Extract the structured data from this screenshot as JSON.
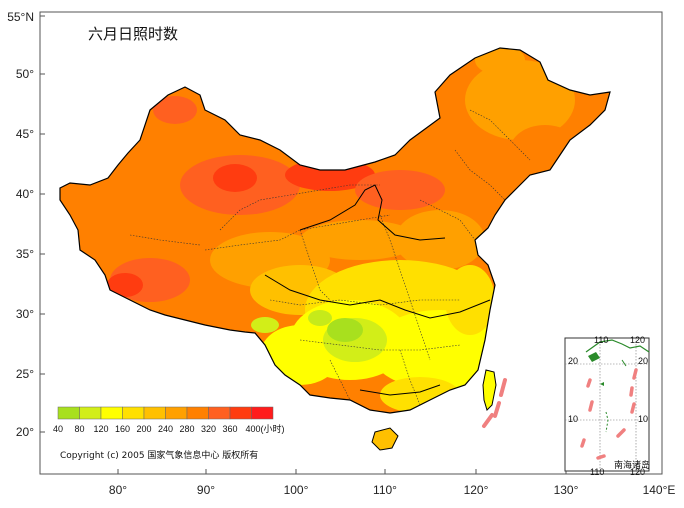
{
  "title": "六月日照时数",
  "lat_ticks": [
    "55°N",
    "50°",
    "45°",
    "40°",
    "35°",
    "30°",
    "25°",
    "20°"
  ],
  "lon_ticks": [
    "80°",
    "90°",
    "100°",
    "110°",
    "120°",
    "130°",
    "140°E"
  ],
  "legend": {
    "values": [
      "40",
      "80",
      "120",
      "160",
      "200",
      "240",
      "280",
      "320",
      "360",
      "400(小时)"
    ],
    "colors": [
      "#a8e01e",
      "#d2ee18",
      "#ffff00",
      "#ffe000",
      "#ffc000",
      "#ffa000",
      "#ff8000",
      "#ff6020",
      "#ff3c10",
      "#ff1c1c"
    ]
  },
  "copyright": "Copyright (c) 2005 国家气象信息中心 版权所有",
  "inset": {
    "name": "南海诸岛",
    "top_ticks": [
      "110",
      "120"
    ],
    "bottom_ticks": [
      "110",
      "120"
    ],
    "left_ticks": [
      "20",
      "10"
    ],
    "right_ticks": [
      "20",
      "10"
    ]
  },
  "colors": {
    "sea": "#ffffff",
    "border": "#000000",
    "frame": "#555555"
  }
}
